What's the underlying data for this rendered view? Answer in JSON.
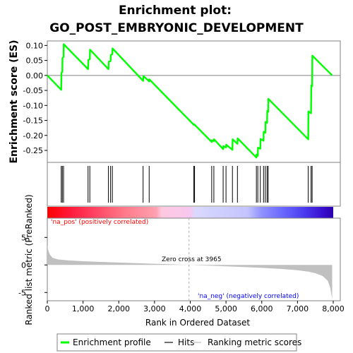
{
  "title_line1": "Enrichment plot:",
  "title_line2": "GO_POST_EMBRYONIC_DEVELOPMENT",
  "colors": {
    "es_line": "#00ff00",
    "hits": "#000000",
    "metric_fill": "#c0c0c0",
    "pos_label": "#ff0000",
    "neg_label": "#0000ff",
    "zero_line": "#808080"
  },
  "legend": {
    "es_label": "Enrichment profile",
    "hits_label": "Hits",
    "metric_label": "Ranking metric scores"
  },
  "chart_data": [
    {
      "type": "line",
      "name": "enrichment_profile",
      "ylabel": "Enrichment score (ES)",
      "ylim": [
        -0.29,
        0.115
      ],
      "xlim": [
        0,
        8000
      ],
      "yticks": [
        0.1,
        0.05,
        0.0,
        -0.05,
        -0.1,
        -0.15,
        -0.2,
        -0.25
      ],
      "ytick_labels": [
        "0.10",
        "0.05",
        "0.00",
        "-0.05",
        "-0.10",
        "-0.15",
        "-0.20",
        "-0.25"
      ],
      "grid": false,
      "points": [
        [
          0,
          0.0
        ],
        [
          390,
          -0.048
        ],
        [
          395,
          0.008
        ],
        [
          420,
          0.012
        ],
        [
          425,
          0.058
        ],
        [
          455,
          0.062
        ],
        [
          460,
          0.104
        ],
        [
          1140,
          0.021
        ],
        [
          1150,
          0.052
        ],
        [
          1190,
          0.054
        ],
        [
          1195,
          0.086
        ],
        [
          1710,
          0.021
        ],
        [
          1720,
          0.046
        ],
        [
          1770,
          0.048
        ],
        [
          1775,
          0.068
        ],
        [
          1820,
          0.071
        ],
        [
          1825,
          0.09
        ],
        [
          2680,
          -0.018
        ],
        [
          2690,
          -0.002
        ],
        [
          2850,
          -0.02
        ],
        [
          2855,
          -0.013
        ],
        [
          4100,
          -0.165
        ],
        [
          4110,
          -0.163
        ],
        [
          4600,
          -0.222
        ],
        [
          4605,
          -0.216
        ],
        [
          4660,
          -0.219
        ],
        [
          4665,
          -0.213
        ],
        [
          4920,
          -0.246
        ],
        [
          4925,
          -0.236
        ],
        [
          5000,
          -0.24
        ],
        [
          5005,
          -0.231
        ],
        [
          5180,
          -0.248
        ],
        [
          5185,
          -0.213
        ],
        [
          5320,
          -0.228
        ],
        [
          5325,
          -0.21
        ],
        [
          5850,
          -0.274
        ],
        [
          5855,
          -0.264
        ],
        [
          5890,
          -0.268
        ],
        [
          5895,
          -0.241
        ],
        [
          5960,
          -0.244
        ],
        [
          5965,
          -0.212
        ],
        [
          6050,
          -0.218
        ],
        [
          6055,
          -0.188
        ],
        [
          6100,
          -0.191
        ],
        [
          6105,
          -0.155
        ],
        [
          6150,
          -0.158
        ],
        [
          6155,
          -0.118
        ],
        [
          6180,
          -0.121
        ],
        [
          6185,
          -0.078
        ],
        [
          7300,
          -0.213
        ],
        [
          7305,
          -0.12
        ],
        [
          7380,
          -0.126
        ],
        [
          7385,
          -0.033
        ],
        [
          7410,
          -0.036
        ],
        [
          7415,
          0.066
        ],
        [
          7970,
          0.0
        ]
      ]
    },
    {
      "type": "table",
      "name": "hit_positions",
      "ranks": [
        390,
        420,
        455,
        1140,
        1190,
        1710,
        1770,
        1820,
        2680,
        2850,
        4100,
        4120,
        4600,
        4660,
        4920,
        5000,
        5180,
        5320,
        5850,
        5890,
        5960,
        6050,
        6100,
        6150,
        6180,
        7300,
        7380,
        7410
      ]
    },
    {
      "type": "area",
      "name": "ranked_list_metric",
      "ylabel": "Ranked list metric (PreRanked)",
      "xlabel": "Rank in Ordered Dataset",
      "ylim": [
        -6.5,
        8.5
      ],
      "xlim": [
        0,
        8000
      ],
      "yticks": [
        5,
        0,
        -5
      ],
      "ytick_labels": [
        "5",
        "0",
        "-5"
      ],
      "xticks": [
        0,
        1000,
        2000,
        3000,
        4000,
        5000,
        6000,
        7000,
        8000
      ],
      "xtick_labels": [
        "0",
        "1,000",
        "2,000",
        "3,000",
        "4,000",
        "5,000",
        "6,000",
        "7,000",
        "8,000"
      ],
      "zero_cross_rank": 3965,
      "zero_cross_label": "Zero cross at 3965",
      "pos_label": "'na_pos' (positively correlated)",
      "neg_label": "'na_neg' (negatively correlated)",
      "points": [
        [
          0,
          3.6
        ],
        [
          30,
          2.6
        ],
        [
          80,
          1.8
        ],
        [
          150,
          1.3
        ],
        [
          300,
          1.0
        ],
        [
          600,
          0.82
        ],
        [
          1000,
          0.68
        ],
        [
          1500,
          0.55
        ],
        [
          2000,
          0.44
        ],
        [
          2500,
          0.33
        ],
        [
          3000,
          0.22
        ],
        [
          3500,
          0.11
        ],
        [
          3965,
          0.0
        ],
        [
          4500,
          -0.12
        ],
        [
          5000,
          -0.24
        ],
        [
          5500,
          -0.37
        ],
        [
          6000,
          -0.52
        ],
        [
          6500,
          -0.7
        ],
        [
          7000,
          -0.95
        ],
        [
          7300,
          -1.2
        ],
        [
          7500,
          -1.5
        ],
        [
          7700,
          -2.0
        ],
        [
          7850,
          -2.9
        ],
        [
          7920,
          -4.2
        ],
        [
          7970,
          -6.2
        ]
      ]
    }
  ]
}
